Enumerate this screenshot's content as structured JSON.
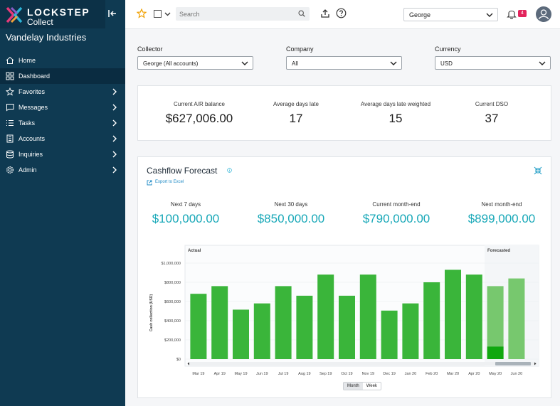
{
  "brand": {
    "name": "LOCKSTEP",
    "product": "Collect"
  },
  "org_name": "Vandelay Industries",
  "nav": [
    {
      "label": "Home",
      "icon": "home-icon",
      "chevron": false,
      "active": false
    },
    {
      "label": "Dashboard",
      "icon": "grid-icon",
      "chevron": false,
      "active": true
    },
    {
      "label": "Favorites",
      "icon": "star-icon",
      "chevron": true,
      "active": false
    },
    {
      "label": "Messages",
      "icon": "message-icon",
      "chevron": true,
      "active": false
    },
    {
      "label": "Tasks",
      "icon": "list-icon",
      "chevron": true,
      "active": false
    },
    {
      "label": "Accounts",
      "icon": "building-icon",
      "chevron": true,
      "active": false
    },
    {
      "label": "Inquiries",
      "icon": "database-icon",
      "chevron": true,
      "active": false
    },
    {
      "label": "Admin",
      "icon": "gear-icon",
      "chevron": true,
      "active": false
    }
  ],
  "topbar": {
    "search_placeholder": "Search",
    "user": "George",
    "notification_count": "4"
  },
  "filters": {
    "collector": {
      "label": "Collector",
      "value": "George (All accounts)"
    },
    "company": {
      "label": "Company",
      "value": "All"
    },
    "currency": {
      "label": "Currency",
      "value": "USD"
    }
  },
  "summary": [
    {
      "label": "Current A/R balance",
      "value": "$627,006.00"
    },
    {
      "label": "Average days late",
      "value": "17"
    },
    {
      "label": "Average days late weighted",
      "value": "15"
    },
    {
      "label": "Current DSO",
      "value": "37"
    }
  ],
  "cashflow": {
    "title": "Cashflow Forecast",
    "export_label": "Export to Excel",
    "stats": [
      {
        "label": "Next 7 days",
        "value": "$100,000.00"
      },
      {
        "label": "Next 30 days",
        "value": "$850,000.00"
      },
      {
        "label": "Current month-end",
        "value": "$790,000.00"
      },
      {
        "label": "Next month-end",
        "value": "$899,000.00"
      }
    ],
    "toggle": {
      "month": "Month",
      "week": "Week"
    }
  },
  "chart_data": {
    "type": "bar",
    "ylabel": "Cash collection (USD)",
    "ylim": [
      0,
      1000000
    ],
    "yticks": [
      0,
      200000,
      400000,
      600000,
      800000,
      1000000
    ],
    "ytick_labels": [
      "$0",
      "$200,000",
      "$400,000",
      "$600,000",
      "$800,000",
      "$1,000,000"
    ],
    "region_labels": {
      "actual": "Actual",
      "forecasted": "Forecasted"
    },
    "categories": [
      "Mar 19",
      "Apr 19",
      "May 19",
      "Jun 19",
      "Jul 19",
      "Aug 19",
      "Sep 19",
      "Oct 19",
      "Nov 19",
      "Dec 19",
      "Jan 20",
      "Feb 20",
      "Mar 20",
      "Apr 20",
      "May 20",
      "Jun 20"
    ],
    "actual": [
      680000,
      760000,
      515000,
      580000,
      760000,
      660000,
      880000,
      660000,
      880000,
      505000,
      580000,
      800000,
      930000,
      880000,
      null,
      null
    ],
    "forecast": [
      null,
      null,
      null,
      null,
      null,
      null,
      null,
      null,
      null,
      null,
      null,
      null,
      null,
      null,
      760000,
      840000
    ],
    "forecast_actual": [
      null,
      null,
      null,
      null,
      null,
      null,
      null,
      null,
      null,
      null,
      null,
      null,
      null,
      null,
      130000,
      null
    ],
    "colors": {
      "actual": "#3ab53a",
      "forecast": "#77c86e",
      "forecast_actual": "#10a80f",
      "forecast_bg": "#f4f6f8"
    }
  }
}
